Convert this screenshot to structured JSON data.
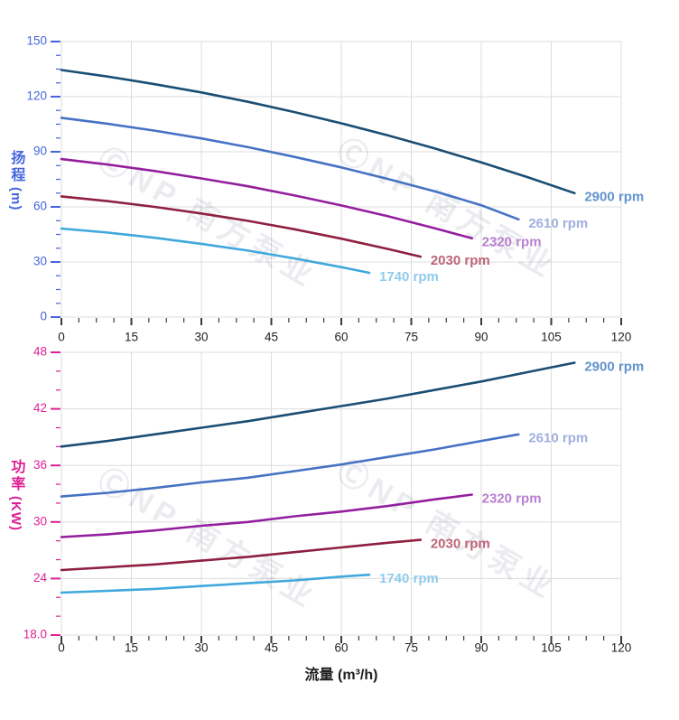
{
  "watermark": {
    "text": "ⒸNP 南方泵业"
  },
  "axis_titles": {
    "head": "扬程",
    "head_unit": "(m)",
    "power": "功率",
    "power_unit": "(KW)",
    "flow": "流量 (m³/h)"
  },
  "style": {
    "grid_color": "#DCDCDC",
    "x_tick_color": "#3A3A3A",
    "x_label_color": "#1F1F1F",
    "watermark_color": "rgba(100,106,140,0.13)"
  },
  "chart_data": [
    {
      "type": "line",
      "name": "head-vs-flow",
      "title": "",
      "xlabel": "流量 (m³/h)",
      "ylabel": "扬程 (m)",
      "xlim": [
        0,
        120
      ],
      "ylim": [
        0,
        150
      ],
      "grid": true,
      "legend_position": "end-of-line-labels",
      "x_tick_values": [
        0,
        15,
        30,
        45,
        60,
        75,
        90,
        105,
        120
      ],
      "x_tick_labels": [
        "0",
        "15",
        "30",
        "45",
        "60",
        "75",
        "90",
        "105",
        "120"
      ],
      "y_tick_values": [
        0,
        30,
        60,
        90,
        120,
        150
      ],
      "y_tick_labels": [
        "0",
        "30",
        "60",
        "90",
        "120",
        "150"
      ],
      "x_minor_step": 3.75,
      "y_minor_step": 7.5,
      "axis_color": "#4565DB",
      "series": [
        {
          "name": "2900 rpm",
          "color": "#1A4E74",
          "label_color": "#6194CE",
          "points": [
            [
              0,
              134.5
            ],
            [
              10,
              130.9
            ],
            [
              20,
              126.8
            ],
            [
              30,
              122.3
            ],
            [
              40,
              117.2
            ],
            [
              50,
              111.6
            ],
            [
              60,
              105.5
            ],
            [
              70,
              98.9
            ],
            [
              80,
              91.8
            ],
            [
              90,
              84.2
            ],
            [
              100,
              76.1
            ],
            [
              110,
              67.5
            ]
          ]
        },
        {
          "name": "2610 rpm",
          "color": "#4672C4",
          "label_color": "#9FAFE0",
          "points": [
            [
              0,
              108.5
            ],
            [
              10,
              105.2
            ],
            [
              20,
              101.5
            ],
            [
              30,
              97.3
            ],
            [
              40,
              92.5
            ],
            [
              50,
              87.2
            ],
            [
              60,
              81.5
            ],
            [
              70,
              75.2
            ],
            [
              80,
              68.5
            ],
            [
              90,
              60.9
            ],
            [
              98,
              53.2
            ]
          ]
        },
        {
          "name": "2320 rpm",
          "color": "#941F9E",
          "label_color": "#B87FCE",
          "points": [
            [
              0,
              86
            ],
            [
              10,
              83
            ],
            [
              20,
              79.5
            ],
            [
              30,
              75.5
            ],
            [
              40,
              71.2
            ],
            [
              50,
              66.2
            ],
            [
              60,
              60.8
            ],
            [
              70,
              54.9
            ],
            [
              80,
              48.4
            ],
            [
              88,
              42.9
            ]
          ]
        },
        {
          "name": "2030 rpm",
          "color": "#8E2040",
          "label_color": "#BD6478",
          "points": [
            [
              0,
              65.7
            ],
            [
              10,
              63.1
            ],
            [
              20,
              60.0
            ],
            [
              30,
              56.4
            ],
            [
              40,
              52.4
            ],
            [
              50,
              47.8
            ],
            [
              60,
              42.7
            ],
            [
              70,
              37.1
            ],
            [
              77,
              32.9
            ]
          ]
        },
        {
          "name": "1740 rpm",
          "color": "#3FA8DC",
          "label_color": "#90CBEC",
          "points": [
            [
              0,
              48.2
            ],
            [
              10,
              46.0
            ],
            [
              20,
              43.2
            ],
            [
              30,
              39.9
            ],
            [
              40,
              36.2
            ],
            [
              50,
              31.9
            ],
            [
              60,
              27.2
            ],
            [
              66,
              24.1
            ]
          ]
        }
      ]
    },
    {
      "type": "line",
      "name": "power-vs-flow",
      "title": "",
      "xlabel": "流量 (m³/h)",
      "ylabel": "功率 (KW)",
      "xlim": [
        0,
        120
      ],
      "ylim": [
        18,
        48
      ],
      "grid": true,
      "legend_position": "end-of-line-labels",
      "x_tick_values": [
        0,
        15,
        30,
        45,
        60,
        75,
        90,
        105,
        120
      ],
      "x_tick_labels": [
        "0",
        "15",
        "30",
        "45",
        "60",
        "75",
        "90",
        "105",
        "120"
      ],
      "y_tick_values": [
        18,
        24,
        30,
        36,
        42,
        48
      ],
      "y_tick_labels": [
        "18.0",
        "24",
        "30",
        "36",
        "42",
        "48"
      ],
      "x_minor_step": 3.75,
      "y_minor_step": 2,
      "axis_color": "#DE1F95",
      "series": [
        {
          "name": "2900 rpm",
          "color": "#1A4E74",
          "label_color": "#6194CE",
          "points": [
            [
              0,
              38.0
            ],
            [
              10,
              38.6
            ],
            [
              20,
              39.3
            ],
            [
              30,
              40.0
            ],
            [
              40,
              40.7
            ],
            [
              50,
              41.5
            ],
            [
              60,
              42.3
            ],
            [
              70,
              43.1
            ],
            [
              80,
              44.0
            ],
            [
              90,
              44.9
            ],
            [
              100,
              45.9
            ],
            [
              110,
              46.9
            ]
          ]
        },
        {
          "name": "2610 rpm",
          "color": "#4672C4",
          "label_color": "#9FAFE0",
          "points": [
            [
              0,
              32.7
            ],
            [
              10,
              33.1
            ],
            [
              20,
              33.6
            ],
            [
              30,
              34.2
            ],
            [
              40,
              34.7
            ],
            [
              50,
              35.4
            ],
            [
              60,
              36.1
            ],
            [
              70,
              36.9
            ],
            [
              80,
              37.7
            ],
            [
              90,
              38.6
            ],
            [
              98,
              39.3
            ]
          ]
        },
        {
          "name": "2320 rpm",
          "color": "#941F9E",
          "label_color": "#B87FCE",
          "points": [
            [
              0,
              28.4
            ],
            [
              10,
              28.7
            ],
            [
              20,
              29.1
            ],
            [
              30,
              29.6
            ],
            [
              40,
              30.0
            ],
            [
              50,
              30.6
            ],
            [
              60,
              31.1
            ],
            [
              70,
              31.7
            ],
            [
              80,
              32.4
            ],
            [
              88,
              32.9
            ]
          ]
        },
        {
          "name": "2030 rpm",
          "color": "#8E2040",
          "label_color": "#BD6478",
          "points": [
            [
              0,
              24.9
            ],
            [
              10,
              25.2
            ],
            [
              20,
              25.5
            ],
            [
              30,
              25.9
            ],
            [
              40,
              26.3
            ],
            [
              50,
              26.8
            ],
            [
              60,
              27.3
            ],
            [
              70,
              27.8
            ],
            [
              77,
              28.1
            ]
          ]
        },
        {
          "name": "1740 rpm",
          "color": "#3FA8DC",
          "label_color": "#90CBEC",
          "points": [
            [
              0,
              22.5
            ],
            [
              10,
              22.7
            ],
            [
              20,
              22.9
            ],
            [
              30,
              23.2
            ],
            [
              40,
              23.5
            ],
            [
              50,
              23.8
            ],
            [
              60,
              24.2
            ],
            [
              66,
              24.4
            ]
          ]
        }
      ]
    }
  ]
}
